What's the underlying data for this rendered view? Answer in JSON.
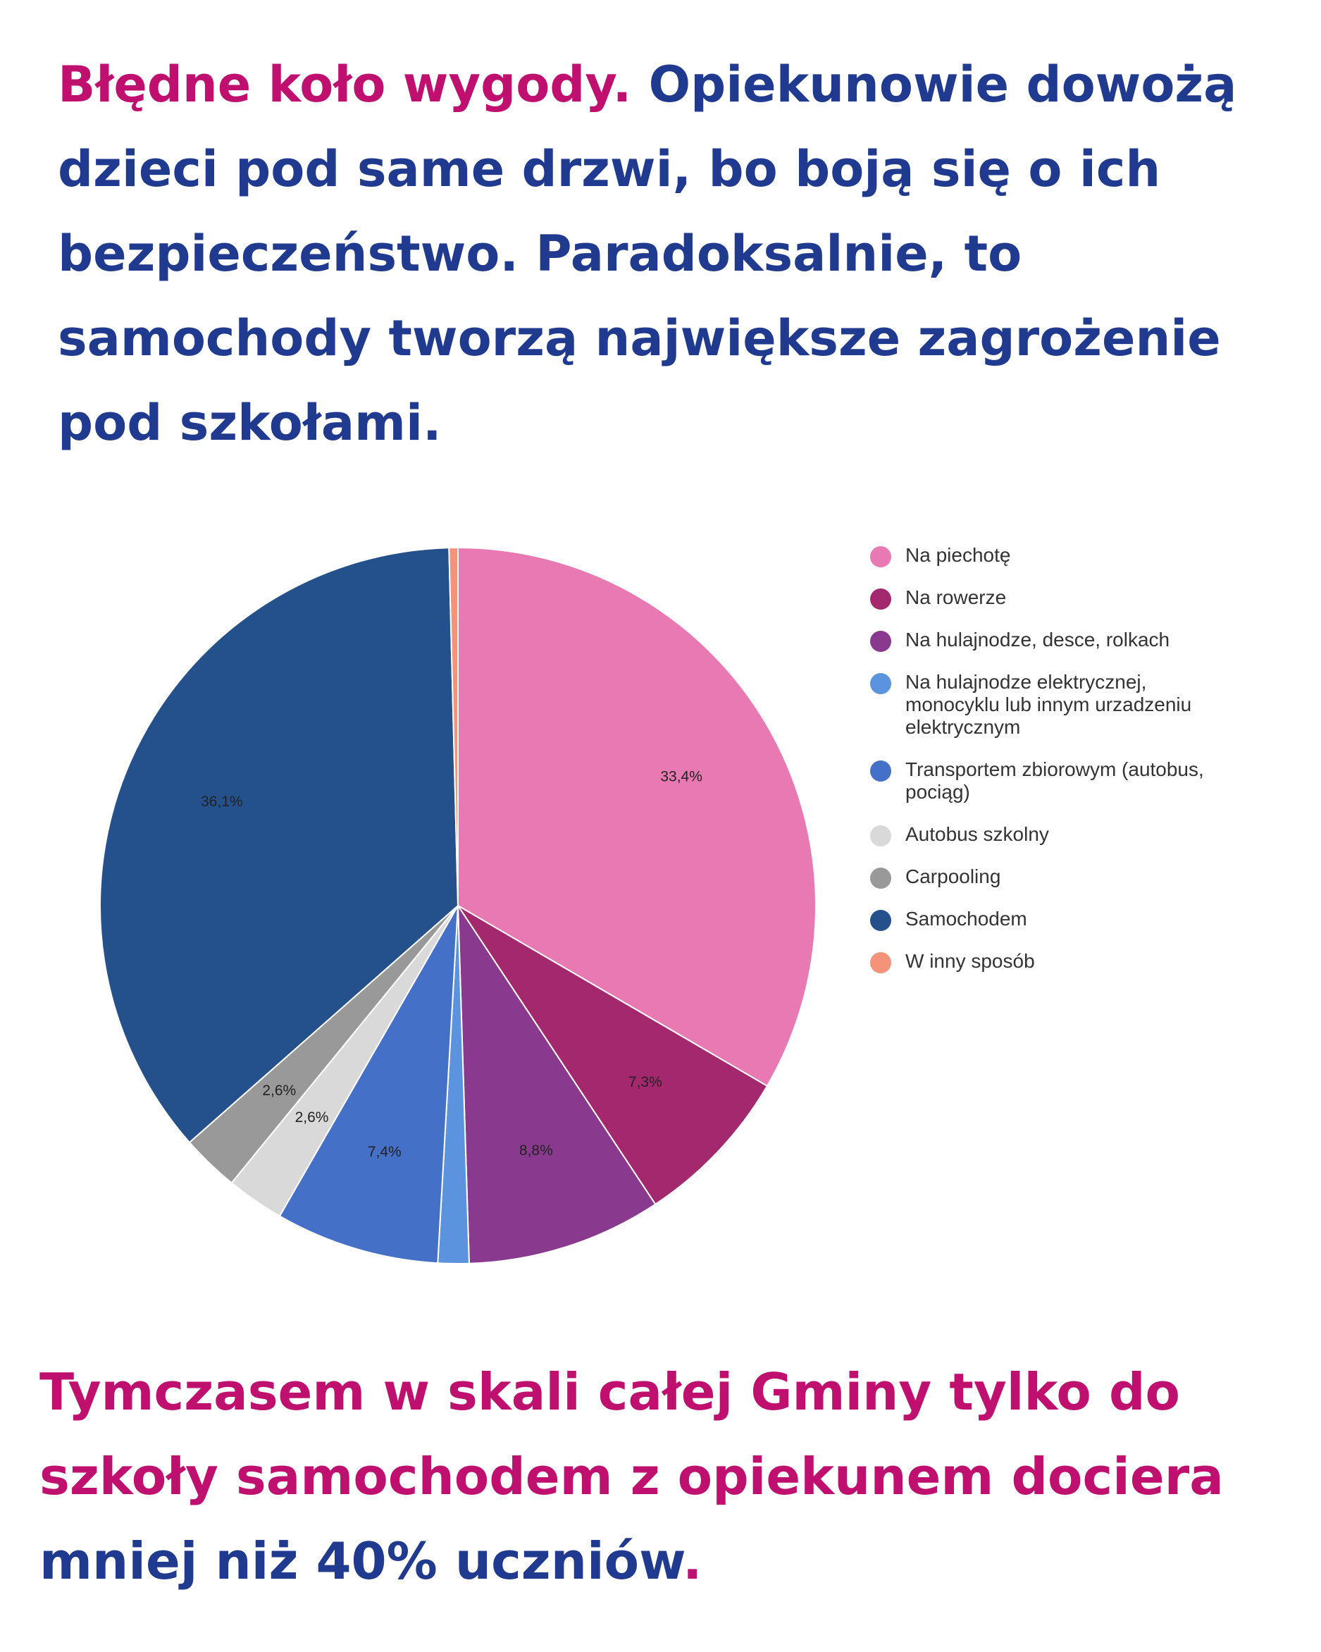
{
  "headline": {
    "highlight": "Błędne koło wygody.",
    "text": " Opiekunowie dowożą dzieci pod same drzwi, bo boją się o ich bezpieczeństwo. Paradoksalnie, to samochody tworzą największe zagrożenie pod szkołami."
  },
  "footer": {
    "part1": "Tymczasem w skali całej Gminy tylko do szkoły samochodem z opiekunem dociera",
    "part2": " mniej niż 40% uczniów",
    "part3": "."
  },
  "chart_data": {
    "type": "pie",
    "start_angle_deg": 0,
    "direction": "clockwise",
    "legend_position": "right",
    "slices": [
      {
        "label": "Na piechotę",
        "value": 33.4,
        "display": "33,4%",
        "color": "#e879b3"
      },
      {
        "label": "Na rowerze",
        "value": 7.3,
        "display": "7,3%",
        "color": "#a3286d"
      },
      {
        "label": "Na hulajnodze, desce, rolkach",
        "value": 8.8,
        "display": "8,8%",
        "color": "#8a3a8e"
      },
      {
        "label": "Na hulajnodze elektrycznej, monocyklu lub innym urzadzeniu elektrycznym",
        "value": 1.4,
        "display": "",
        "color": "#5b93df"
      },
      {
        "label": "Transportem zbiorowym (autobus, pociąg)",
        "value": 7.4,
        "display": "7,4%",
        "color": "#4470c7"
      },
      {
        "label": "Autobus szkolny",
        "value": 2.6,
        "display": "2,6%",
        "color": "#d9d9d9"
      },
      {
        "label": "Carpooling",
        "value": 2.6,
        "display": "2,6%",
        "color": "#999999"
      },
      {
        "label": "Samochodem",
        "value": 36.1,
        "display": "36,1%",
        "color": "#24508b"
      },
      {
        "label": "W inny sposób",
        "value": 0.4,
        "display": "",
        "color": "#f4937a"
      }
    ]
  }
}
